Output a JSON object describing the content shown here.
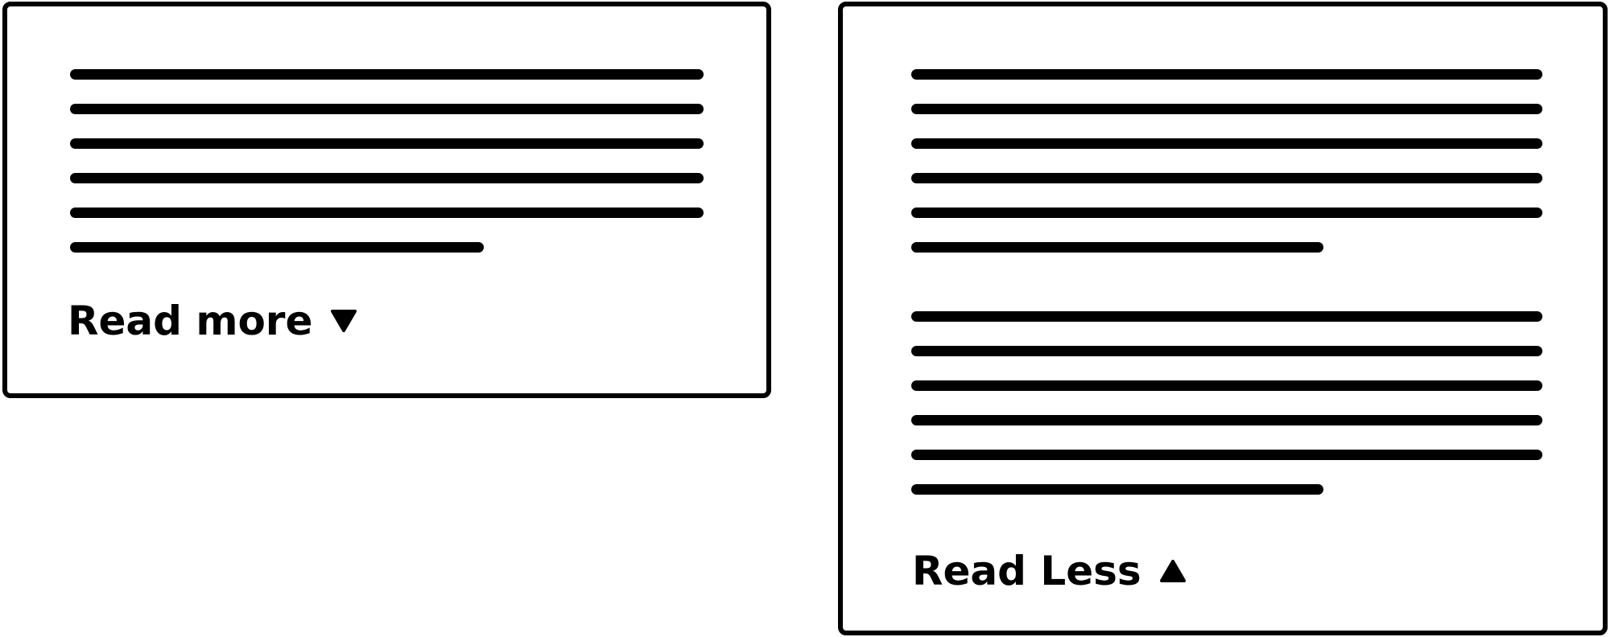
{
  "collapsed_card": {
    "toggle_label": "Read more",
    "toggle_icon": "triangle-down-icon",
    "paragraphs": [
      {
        "lines": 6
      }
    ]
  },
  "expanded_card": {
    "toggle_label": "Read Less",
    "toggle_icon": "triangle-up-icon",
    "paragraphs": [
      {
        "lines": 6
      },
      {
        "lines": 6
      }
    ]
  },
  "colors": {
    "foreground": "#000000",
    "background": "#ffffff"
  }
}
